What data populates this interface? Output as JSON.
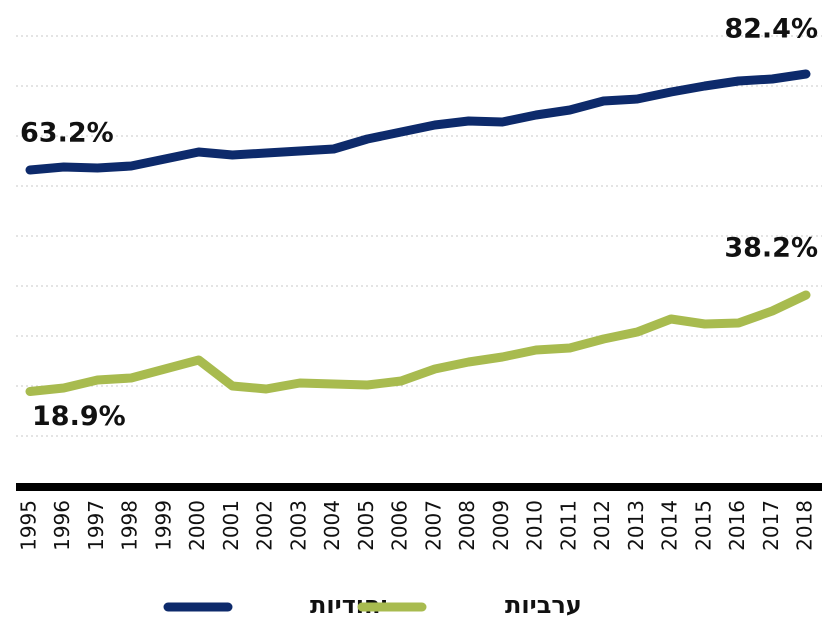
{
  "chart_data": {
    "type": "line",
    "x": [
      "1995",
      "1996",
      "1997",
      "1998",
      "1999",
      "2000",
      "2001",
      "2002",
      "2003",
      "2004",
      "2005",
      "2006",
      "2007",
      "2008",
      "2009",
      "2010",
      "2011",
      "2012",
      "2013",
      "2014",
      "2015",
      "2016",
      "2017",
      "2018"
    ],
    "series": [
      {
        "name": "יהודיות",
        "color": "#0d2a6b",
        "values": [
          63.2,
          63.8,
          63.6,
          64.0,
          65.4,
          66.8,
          66.2,
          66.6,
          67.0,
          67.4,
          69.4,
          70.8,
          72.2,
          73.0,
          72.8,
          74.2,
          75.2,
          77.0,
          77.4,
          78.8,
          80.0,
          81.0,
          81.4,
          82.4
        ],
        "value_labels": [
          "63.2%",
          null,
          null,
          null,
          null,
          null,
          null,
          null,
          null,
          null,
          null,
          null,
          null,
          null,
          null,
          null,
          null,
          null,
          null,
          null,
          null,
          null,
          null,
          "82.4%"
        ]
      },
      {
        "name": "ערביות",
        "color": "#a8bb4f",
        "values": [
          18.9,
          19.6,
          21.2,
          21.6,
          23.4,
          25.2,
          20.0,
          19.4,
          20.6,
          20.4,
          20.2,
          21.0,
          23.4,
          24.8,
          25.8,
          27.2,
          27.6,
          29.4,
          30.8,
          33.4,
          32.4,
          32.6,
          35.0,
          38.2
        ],
        "value_labels": [
          "18.9%",
          null,
          null,
          null,
          null,
          null,
          null,
          null,
          null,
          null,
          null,
          null,
          null,
          null,
          null,
          null,
          null,
          null,
          null,
          null,
          null,
          null,
          null,
          "38.2%"
        ]
      }
    ],
    "ylim": [
      0,
      90
    ],
    "yticks": [
      10,
      20,
      30,
      40,
      50,
      60,
      70,
      80,
      90
    ],
    "grid": true
  }
}
